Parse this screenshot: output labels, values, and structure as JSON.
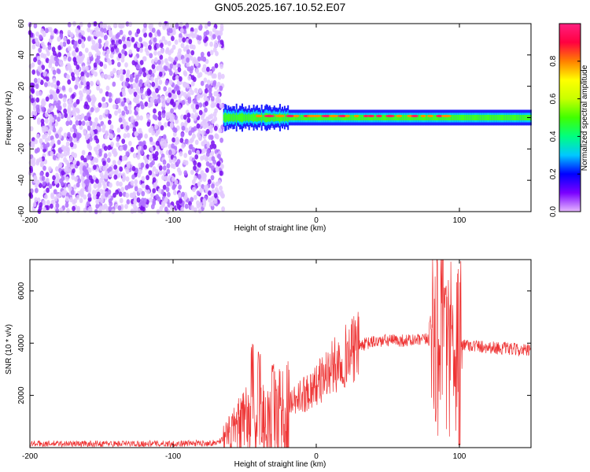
{
  "title": "GN05.2025.167.10.52.E07",
  "chart_data": [
    {
      "type": "heatmap",
      "xlabel": "Height of straight line (km)",
      "ylabel": "Frequency (Hz)",
      "xlim": [
        -200,
        150
      ],
      "ylim": [
        -60,
        60
      ],
      "xticks": [
        -200,
        -100,
        0,
        100
      ],
      "xtick_labels": [
        "-200",
        "-100",
        "0",
        "100"
      ],
      "yticks": [
        -60,
        -40,
        -20,
        0,
        20,
        40,
        60
      ],
      "ytick_labels": [
        "-60",
        "-40",
        "-20",
        "0",
        "20",
        "40",
        "60"
      ],
      "colorbar": {
        "label": "Normalized spectral amplitude",
        "range": [
          0,
          1
        ],
        "ticks": [
          0.0,
          0.2,
          0.4,
          0.6,
          0.8
        ],
        "tick_labels": [
          "0.0",
          "0.2",
          "0.4",
          "0.6",
          "0.8"
        ],
        "colors": [
          "#e6b8ff",
          "#7a00ff",
          "#0000ff",
          "#00c8ff",
          "#00ff80",
          "#40ff00",
          "#c8ff00",
          "#ffff00",
          "#ff8000",
          "#ff0040",
          "#ff2080"
        ]
      },
      "regions": [
        {
          "x_range": [
            -200,
            -67
          ],
          "freq_range": [
            -60,
            60
          ],
          "level": "low (0.0-0.1), speckled noise"
        },
        {
          "x_range": [
            -65,
            150
          ],
          "freq_center": 0,
          "freq_halfwidth": 5,
          "level": "band 0.3-0.5"
        },
        {
          "x_range": [
            -40,
            95
          ],
          "freq_center": 1,
          "level": "band core 0.9-1.0"
        }
      ]
    },
    {
      "type": "line",
      "xlabel": "Height of straight line (km)",
      "ylabel": "SNR (10 * v/v)",
      "xlim": [
        -200,
        150
      ],
      "ylim": [
        0,
        7200
      ],
      "xticks": [
        -200,
        -100,
        0,
        100
      ],
      "xtick_labels": [
        "-200",
        "-100",
        "0",
        "100"
      ],
      "yticks": [
        2000,
        4000,
        6000
      ],
      "ytick_labels": [
        "2000",
        "4000",
        "6000"
      ],
      "line_color": "#ee3333",
      "series_envelope": [
        {
          "x": -200,
          "y": 150
        },
        {
          "x": -150,
          "y": 150
        },
        {
          "x": -100,
          "y": 150
        },
        {
          "x": -70,
          "y": 180
        },
        {
          "x": -60,
          "y": 500
        },
        {
          "x": -50,
          "y": 900
        },
        {
          "x": -40,
          "y": 1100
        },
        {
          "x": -30,
          "y": 1000
        },
        {
          "x": -20,
          "y": 1500
        },
        {
          "x": -10,
          "y": 2000
        },
        {
          "x": 0,
          "y": 2400
        },
        {
          "x": 10,
          "y": 3000
        },
        {
          "x": 20,
          "y": 3500
        },
        {
          "x": 30,
          "y": 3900
        },
        {
          "x": 40,
          "y": 4050
        },
        {
          "x": 50,
          "y": 4100
        },
        {
          "x": 60,
          "y": 4100
        },
        {
          "x": 70,
          "y": 4100
        },
        {
          "x": 80,
          "y": 4150
        },
        {
          "x": 90,
          "y": 4300
        },
        {
          "x": 100,
          "y": 4000
        },
        {
          "x": 110,
          "y": 3900
        },
        {
          "x": 120,
          "y": 3850
        },
        {
          "x": 130,
          "y": 3800
        },
        {
          "x": 140,
          "y": 3750
        },
        {
          "x": 150,
          "y": 3700
        }
      ],
      "peaks": [
        {
          "x": -45,
          "y": 4000
        },
        {
          "x": -40,
          "y": 3700
        },
        {
          "x": -30,
          "y": 3300
        },
        {
          "x": -20,
          "y": 3500
        },
        {
          "x": 80,
          "y": 5200
        },
        {
          "x": 90,
          "y": 6200
        },
        {
          "x": 100,
          "y": 7200
        }
      ],
      "troughs": [
        {
          "x": -20,
          "y": 0
        },
        {
          "x": 100,
          "y": 100
        }
      ]
    }
  ]
}
